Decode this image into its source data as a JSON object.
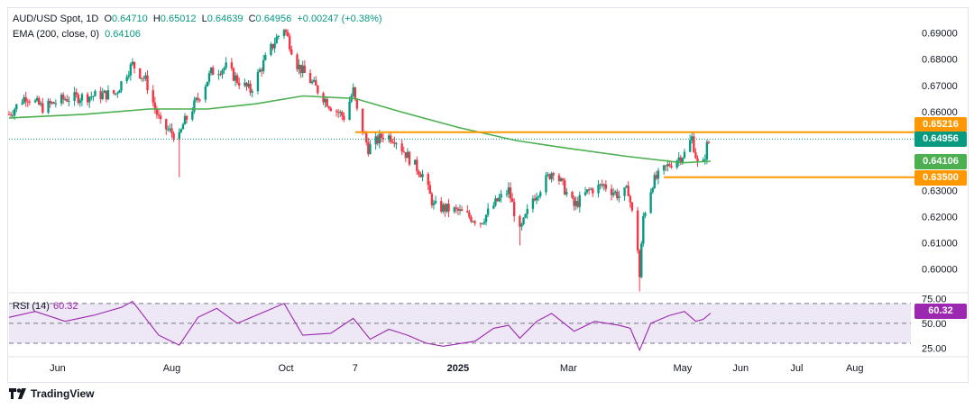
{
  "header": {
    "symbol": "AUD/USD Spot, 1D",
    "open_label": "O",
    "open": "0.64710",
    "high_label": "H",
    "high": "0.65012",
    "low_label": "L",
    "low": "0.64639",
    "close_label": "C",
    "close": "0.64956",
    "change": "+0.00247 (+0.38%)",
    "ema_label": "EMA (200, close, 0)",
    "ema_value": "0.64106"
  },
  "rsi_panel": {
    "label": "RSI (14)",
    "value": "60.32"
  },
  "branding": {
    "name": "TradingView"
  },
  "colors": {
    "up": "#089981",
    "down": "#f23645",
    "ema": "#4caf50",
    "level": "#ff9800",
    "rsi": "#9c27b0",
    "rsi_band": "#ede7f6",
    "price_tag": "#089981"
  },
  "chart_data": [
    {
      "type": "candlestick",
      "title": "AUD/USD Spot, 1D",
      "ylim": [
        0.592,
        0.695
      ],
      "y_ticks": [
        "0.69000",
        "0.68000",
        "0.67000",
        "0.66000",
        "0.65000",
        "0.64000",
        "0.63000",
        "0.62000",
        "0.61000",
        "0.60000"
      ],
      "x_ticks": [
        "Jun",
        "Aug",
        "Oct",
        "7",
        "2025",
        "Mar",
        "May",
        "Jun",
        "Jul",
        "Aug"
      ],
      "x_range": [
        "2024-05-06",
        "2025-08-31"
      ],
      "x_tick_dates": [
        "2024-06-01",
        "2024-08-01",
        "2024-10-01",
        "2024-11-07",
        "2025-01-01",
        "2025-03-01",
        "2025-05-01",
        "2025-06-01",
        "2025-07-01",
        "2025-08-01"
      ],
      "close_series": [
        [
          "2024-05-06",
          0.659
        ],
        [
          "2024-05-15",
          0.666
        ],
        [
          "2024-05-24",
          0.6615
        ],
        [
          "2024-06-05",
          0.665
        ],
        [
          "2024-06-20",
          0.666
        ],
        [
          "2024-07-02",
          0.667
        ],
        [
          "2024-07-08",
          0.675
        ],
        [
          "2024-07-11",
          0.678
        ],
        [
          "2024-07-18",
          0.672
        ],
        [
          "2024-07-26",
          0.655
        ],
        [
          "2024-08-05",
          0.65
        ],
        [
          "2024-08-07",
          0.655
        ],
        [
          "2024-08-15",
          0.665
        ],
        [
          "2024-08-22",
          0.675
        ],
        [
          "2024-08-30",
          0.677
        ],
        [
          "2024-09-05",
          0.672
        ],
        [
          "2024-09-12",
          0.668
        ],
        [
          "2024-09-20",
          0.68
        ],
        [
          "2024-09-26",
          0.688
        ],
        [
          "2024-09-30",
          0.692
        ],
        [
          "2024-10-07",
          0.678
        ],
        [
          "2024-10-16",
          0.67
        ],
        [
          "2024-10-25",
          0.662
        ],
        [
          "2024-11-01",
          0.658
        ],
        [
          "2024-11-06",
          0.668
        ],
        [
          "2024-11-08",
          0.66
        ],
        [
          "2024-11-14",
          0.646
        ],
        [
          "2024-11-22",
          0.651
        ],
        [
          "2024-11-28",
          0.65
        ],
        [
          "2024-12-06",
          0.642
        ],
        [
          "2024-12-13",
          0.636
        ],
        [
          "2024-12-19",
          0.624
        ],
        [
          "2025-01-01",
          0.622
        ],
        [
          "2025-01-13",
          0.618
        ],
        [
          "2025-01-22",
          0.626
        ],
        [
          "2025-01-28",
          0.63
        ],
        [
          "2025-02-03",
          0.614
        ],
        [
          "2025-02-10",
          0.627
        ],
        [
          "2025-02-18",
          0.635
        ],
        [
          "2025-02-21",
          0.638
        ],
        [
          "2025-03-04",
          0.624
        ],
        [
          "2025-03-12",
          0.63
        ],
        [
          "2025-03-20",
          0.632
        ],
        [
          "2025-03-28",
          0.628
        ],
        [
          "2025-04-02",
          0.63
        ],
        [
          "2025-04-07",
          0.608
        ],
        [
          "2025-04-08",
          0.597
        ],
        [
          "2025-04-10",
          0.62
        ],
        [
          "2025-04-15",
          0.633
        ],
        [
          "2025-04-24",
          0.64
        ],
        [
          "2025-05-02",
          0.644
        ],
        [
          "2025-05-06",
          0.65
        ],
        [
          "2025-05-09",
          0.64
        ],
        [
          "2025-05-12",
          0.64
        ],
        [
          "2025-05-14",
          0.647
        ],
        [
          "2025-05-16",
          0.6496
        ]
      ],
      "ema200": [
        [
          "2024-05-06",
          0.6576
        ],
        [
          "2024-06-15",
          0.659
        ],
        [
          "2024-07-20",
          0.661
        ],
        [
          "2024-08-20",
          0.661
        ],
        [
          "2024-09-15",
          0.663
        ],
        [
          "2024-10-10",
          0.666
        ],
        [
          "2024-11-07",
          0.665
        ],
        [
          "2024-12-01",
          0.66
        ],
        [
          "2025-01-01",
          0.654
        ],
        [
          "2025-02-01",
          0.649
        ],
        [
          "2025-03-01",
          0.646
        ],
        [
          "2025-04-01",
          0.643
        ],
        [
          "2025-05-01",
          0.6405
        ],
        [
          "2025-05-16",
          0.6411
        ]
      ],
      "levels": [
        {
          "value": 0.65216,
          "label": "0.65216",
          "from": "2024-11-07"
        },
        {
          "value": 0.635,
          "label": "0.63500",
          "from": "2025-04-21"
        }
      ],
      "last_price": {
        "value": 0.64956,
        "label": "0.64956"
      },
      "ema_last": {
        "value": 0.64106,
        "label": "0.64106"
      }
    },
    {
      "type": "line",
      "title": "RSI (14)",
      "ylim": [
        20,
        78
      ],
      "y_ticks": [
        "75.00",
        "50.00",
        "25.00"
      ],
      "band": [
        30,
        70
      ],
      "midline": 50,
      "series": [
        [
          "2024-05-06",
          56
        ],
        [
          "2024-05-20",
          62
        ],
        [
          "2024-06-05",
          52
        ],
        [
          "2024-06-20",
          58
        ],
        [
          "2024-07-05",
          66
        ],
        [
          "2024-07-11",
          72
        ],
        [
          "2024-07-25",
          38
        ],
        [
          "2024-08-05",
          28
        ],
        [
          "2024-08-15",
          56
        ],
        [
          "2024-08-25",
          65
        ],
        [
          "2024-09-05",
          50
        ],
        [
          "2024-09-20",
          62
        ],
        [
          "2024-09-30",
          70
        ],
        [
          "2024-10-10",
          38
        ],
        [
          "2024-10-25",
          40
        ],
        [
          "2024-11-06",
          55
        ],
        [
          "2024-11-15",
          34
        ],
        [
          "2024-11-25",
          44
        ],
        [
          "2024-12-05",
          38
        ],
        [
          "2024-12-15",
          30
        ],
        [
          "2024-12-24",
          27
        ],
        [
          "2025-01-10",
          32
        ],
        [
          "2025-01-20",
          45
        ],
        [
          "2025-01-28",
          48
        ],
        [
          "2025-02-03",
          35
        ],
        [
          "2025-02-12",
          52
        ],
        [
          "2025-02-20",
          60
        ],
        [
          "2025-03-04",
          42
        ],
        [
          "2025-03-15",
          52
        ],
        [
          "2025-03-28",
          48
        ],
        [
          "2025-04-03",
          45
        ],
        [
          "2025-04-08",
          23
        ],
        [
          "2025-04-14",
          50
        ],
        [
          "2025-04-24",
          58
        ],
        [
          "2025-05-02",
          62
        ],
        [
          "2025-05-08",
          52
        ],
        [
          "2025-05-12",
          54
        ],
        [
          "2025-05-16",
          60.32
        ]
      ]
    }
  ]
}
